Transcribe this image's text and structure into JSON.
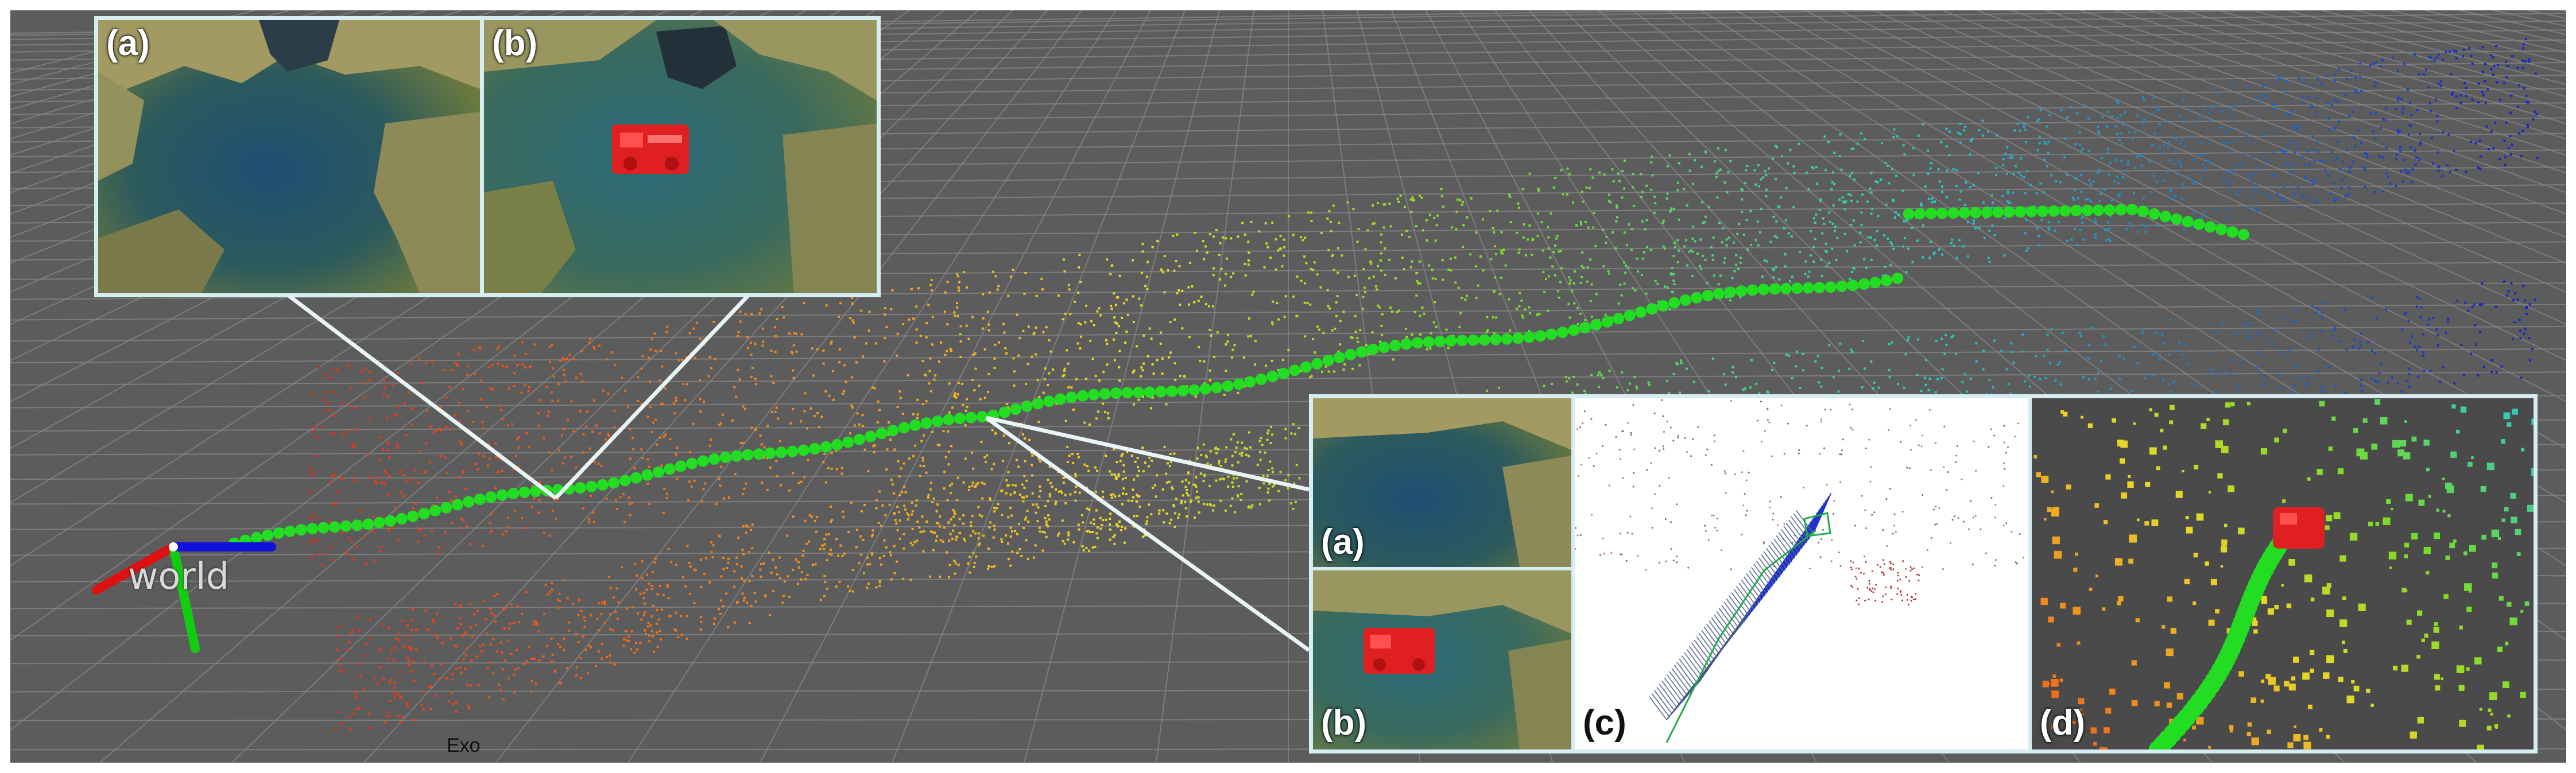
{
  "scene": {
    "frame_label": "world",
    "camera_label": "Exo"
  },
  "inset_top": {
    "panels": [
      {
        "label": "(a)",
        "content": "cave photo"
      },
      {
        "label": "(b)",
        "content": "cave photo with robot overlay"
      }
    ]
  },
  "inset_bottom": {
    "panels": [
      {
        "label": "(a)",
        "content": "cave photo"
      },
      {
        "label": "(b)",
        "content": "cave photo with robot overlay"
      },
      {
        "label": "(c)",
        "content": "point cloud with camera frustums"
      },
      {
        "label": "(d)",
        "content": "trajectory with robot"
      }
    ]
  },
  "colors": {
    "viewport_bg": "#5c5c5c",
    "grid": "#8a8a8a",
    "trajectory": "#22dd22",
    "robot": "#e02020",
    "frame": "#d6eef2",
    "axis_x": "#dd1111",
    "axis_y": "#11cc11",
    "axis_z": "#1111dd"
  },
  "icons": {
    "robot": "red-robot-icon"
  }
}
